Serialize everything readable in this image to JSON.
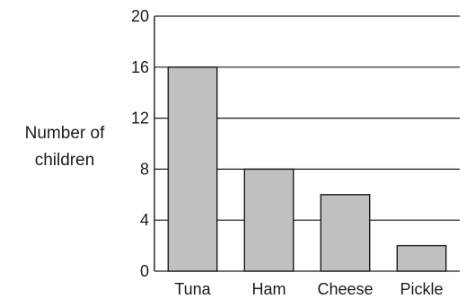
{
  "chart_data": {
    "type": "bar",
    "title": "",
    "xlabel": "",
    "ylabel_lines": [
      "Number of",
      "children"
    ],
    "categories": [
      "Tuna",
      "Ham",
      "Cheese",
      "Pickle"
    ],
    "values": [
      16,
      8,
      6,
      2
    ],
    "ylim": [
      0,
      20
    ],
    "yticks": [
      0,
      4,
      8,
      12,
      16,
      20
    ],
    "grid": true,
    "bar_color": "#c0c0c0"
  }
}
